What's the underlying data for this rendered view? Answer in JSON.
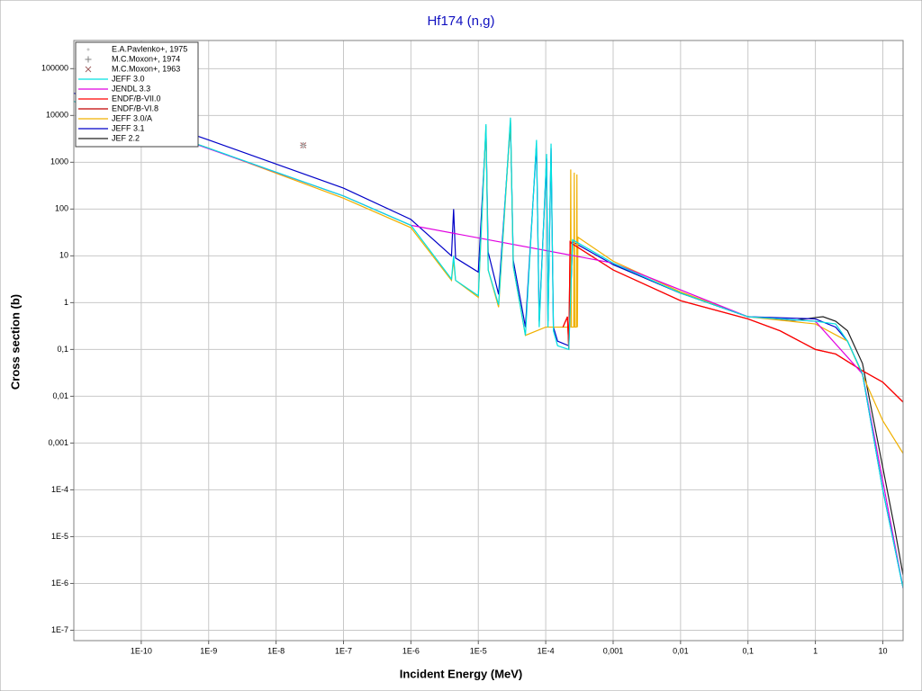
{
  "chart_data": {
    "type": "line",
    "title": "Hf174 (n,g)",
    "x_label": "Incident Energy (MeV)",
    "y_label": "Cross section (b)",
    "xscale": "log",
    "yscale": "log",
    "grid": true,
    "legend": "upper left",
    "xlim": [
      1e-11,
      20
    ],
    "ylim": [
      6e-08,
      400000
    ],
    "xticks": [
      {
        "value": 1e-10,
        "label": "1E-10"
      },
      {
        "value": 1e-09,
        "label": "1E-9"
      },
      {
        "value": 1e-08,
        "label": "1E-8"
      },
      {
        "value": 1e-07,
        "label": "1E-7"
      },
      {
        "value": 1e-06,
        "label": "1E-6"
      },
      {
        "value": 1e-05,
        "label": "1E-5"
      },
      {
        "value": 0.0001,
        "label": "1E-4"
      },
      {
        "value": 0.001,
        "label": "0,001"
      },
      {
        "value": 0.01,
        "label": "0,01"
      },
      {
        "value": 0.1,
        "label": "0,1"
      },
      1,
      10
    ],
    "yticks": [
      {
        "value": 1e-07,
        "label": "1E-7"
      },
      {
        "value": 1e-06,
        "label": "1E-6"
      },
      {
        "value": 1e-05,
        "label": "1E-5"
      },
      {
        "value": 0.0001,
        "label": "1E-4"
      },
      {
        "value": 0.001,
        "label": "0,001"
      },
      {
        "value": 0.01,
        "label": "0,01"
      },
      {
        "value": 0.1,
        "label": "0,1"
      },
      1,
      10,
      100,
      1000,
      10000,
      100000
    ],
    "series": [
      {
        "name": "E.A.Pavlenko+, 1975",
        "color": "#c8c8c8",
        "marker": "dot",
        "x": [
          2.53e-08
        ],
        "values": [
          2250
        ]
      },
      {
        "name": "M.C.Moxon+, 1974",
        "color": "#808080",
        "marker": "plus",
        "x": [
          2.53e-08
        ],
        "values": [
          2300
        ]
      },
      {
        "name": "M.C.Moxon+, 1963",
        "color": "#a06060",
        "marker": "cross",
        "x": [
          2.53e-08
        ],
        "values": [
          2300
        ]
      },
      {
        "name": "JEFF 3.0",
        "color": "#00e0e0",
        "x": [
          1e-11,
          1e-09,
          1e-07,
          1e-06,
          4e-06,
          4.3e-06,
          4.6e-06,
          1e-05,
          1.3e-05,
          1.4e-05,
          2e-05,
          3e-05,
          3.3e-05,
          5e-05,
          7.3e-05,
          8e-05,
          0.000103,
          0.000108,
          0.00012,
          0.00013,
          0.00015,
          0.00022,
          0.00025,
          0.001,
          0.01,
          0.1,
          1,
          2,
          3,
          5,
          10,
          20
        ],
        "values": [
          20000,
          2000,
          190,
          45,
          3.2,
          10,
          3,
          1.4,
          6500,
          5,
          0.9,
          9000,
          6,
          0.2,
          3000,
          0.3,
          1500,
          0.3,
          2500,
          0.25,
          0.12,
          0.1,
          22,
          7,
          1.6,
          0.5,
          0.4,
          0.35,
          0.15,
          0.03,
          0.0001,
          8e-07
        ]
      },
      {
        "name": "JENDL 3.3",
        "color": "#e000e0",
        "x": [
          1e-11,
          1e-07,
          1e-06,
          0.001,
          0.1,
          1,
          5,
          20
        ],
        "values": [
          20000,
          190,
          45,
          7,
          0.5,
          0.4,
          0.03,
          8e-07
        ]
      },
      {
        "name": "ENDF/B-VII.0",
        "color": "#ff0000",
        "x": [
          0.00018,
          0.00021,
          0.00022,
          0.00023,
          0.00025,
          0.001,
          0.01,
          0.1,
          0.3,
          1,
          2,
          5,
          10,
          20
        ],
        "values": [
          0.3,
          0.5,
          0.1,
          20,
          18,
          5,
          1.1,
          0.45,
          0.25,
          0.1,
          0.08,
          0.035,
          0.02,
          0.0075
        ]
      },
      {
        "name": "ENDF/B-VI.8",
        "color": "#c00000",
        "x": [
          0.00018,
          0.00021,
          0.00022,
          0.00023,
          0.00025,
          0.001,
          0.01,
          0.1,
          0.3,
          1,
          2,
          5,
          10,
          20
        ],
        "values": [
          0.3,
          0.5,
          0.1,
          20,
          18,
          5,
          1.1,
          0.45,
          0.25,
          0.1,
          0.08,
          0.035,
          0.02,
          0.0075
        ]
      },
      {
        "name": "JEFF 3.0/A",
        "color": "#f0b000",
        "x": [
          1e-11,
          1e-09,
          1e-07,
          1e-06,
          4e-06,
          4.3e-06,
          4.6e-06,
          1e-05,
          1.3e-05,
          1.4e-05,
          2e-05,
          3e-05,
          3.3e-05,
          5e-05,
          0.0001,
          0.00023,
          0.000235,
          0.00024,
          0.00026,
          0.000265,
          0.00027,
          0.000285,
          0.00029,
          0.000295,
          0.0003,
          0.001,
          0.01,
          0.1,
          1,
          3,
          10,
          20
        ],
        "values": [
          20000,
          2000,
          170,
          40,
          3,
          8,
          3,
          1.3,
          6000,
          5,
          0.8,
          8000,
          6,
          0.2,
          0.3,
          0.3,
          700,
          0.3,
          0.3,
          600,
          0.3,
          0.3,
          550,
          0.3,
          25,
          7.7,
          1.7,
          0.5,
          0.35,
          0.15,
          0.003,
          0.0006
        ]
      },
      {
        "name": "JEFF 3.1",
        "color": "#0000c8",
        "x": [
          1e-11,
          1e-09,
          1e-07,
          1e-06,
          4e-06,
          4.3e-06,
          4.6e-06,
          1e-05,
          1.3e-05,
          1.4e-05,
          2e-05,
          3e-05,
          3.3e-05,
          5e-05,
          7.3e-05,
          8e-05,
          0.000103,
          0.000108,
          0.00012,
          0.00013,
          0.00015,
          0.00022,
          0.00025,
          0.001,
          0.01,
          0.1,
          1,
          2,
          3,
          5,
          10,
          20
        ],
        "values": [
          30000,
          3000,
          280,
          60,
          10,
          100,
          9,
          4.5,
          5000,
          12,
          1.5,
          7000,
          8,
          0.3,
          2500,
          0.4,
          1200,
          0.4,
          2000,
          0.3,
          0.15,
          0.12,
          20,
          6.5,
          1.6,
          0.5,
          0.45,
          0.3,
          0.15,
          0.03,
          0.0001,
          8e-07
        ]
      },
      {
        "name": "JEF 2.2",
        "color": "#202020",
        "x": [
          0.001,
          0.01,
          0.1,
          0.5,
          1,
          1.3,
          2,
          3,
          5,
          10,
          15,
          20
        ],
        "values": [
          6.5,
          1.6,
          0.5,
          0.42,
          0.48,
          0.5,
          0.4,
          0.25,
          0.05,
          0.0003,
          1.5e-05,
          1.5e-06
        ]
      }
    ]
  }
}
